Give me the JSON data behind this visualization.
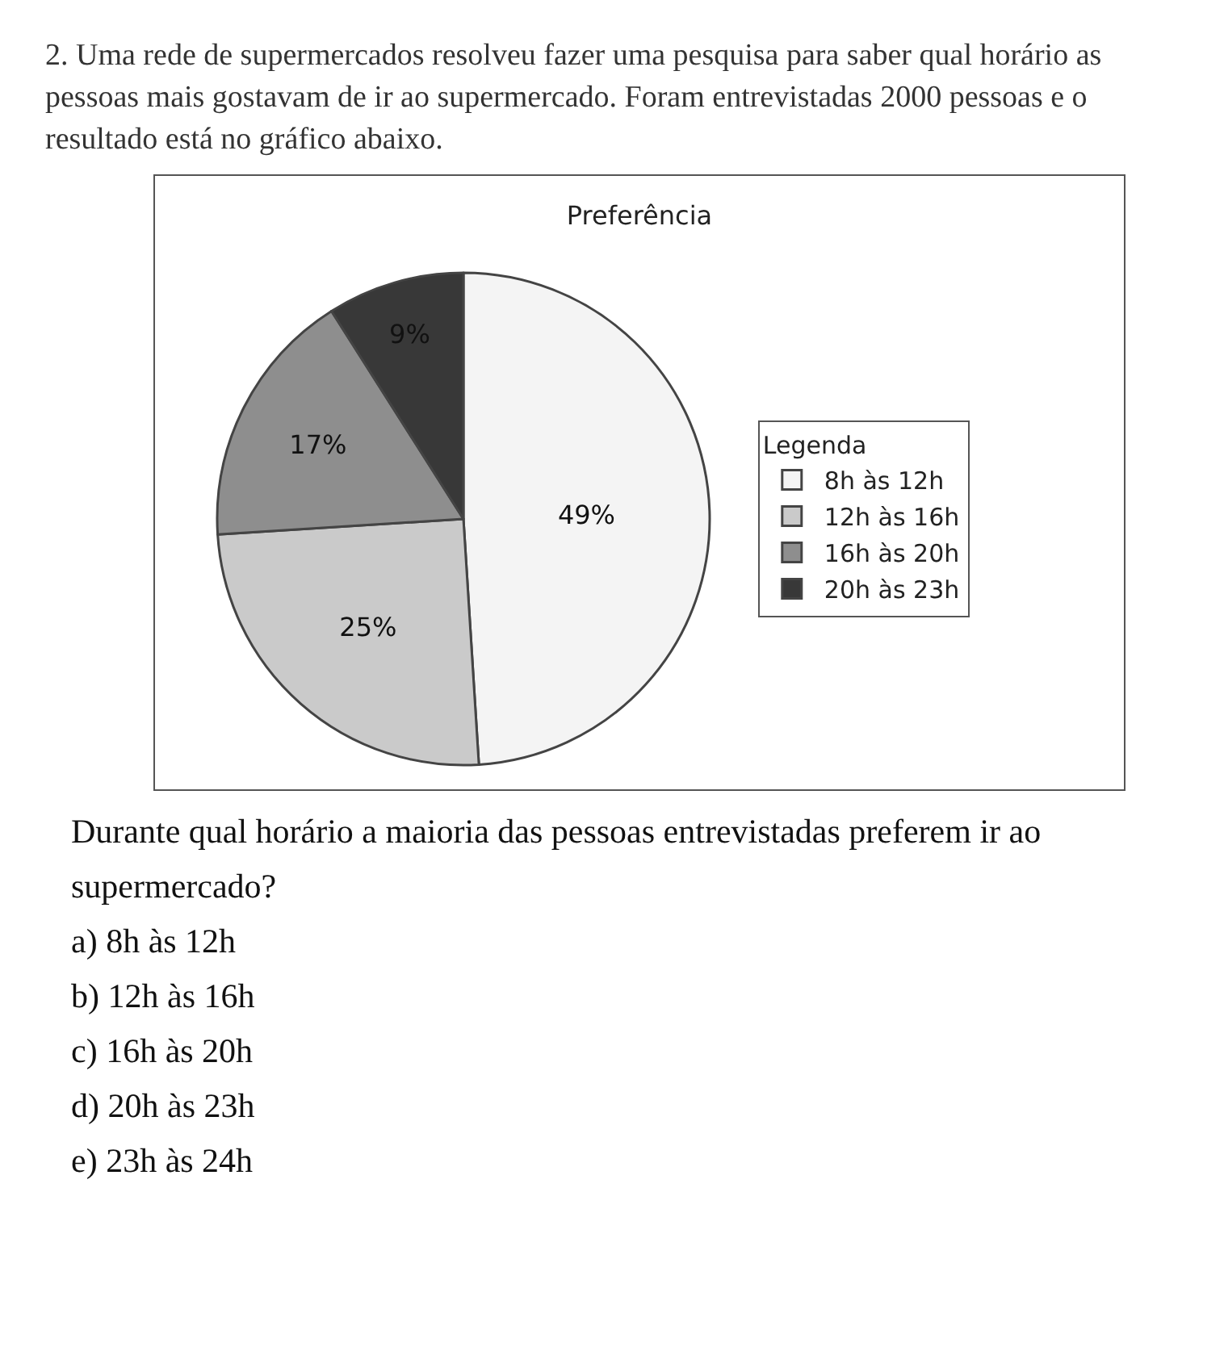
{
  "chart_data": {
    "type": "pie",
    "subtitle": "2. Uma rede de supermercados resolveu fazer uma pesquisa para saber qual horário as pessoas mais gostavam de ir ao supermercado. Foram entrevistadas 2000 pessoas e o resultado está no gráfico abaixo.",
    "title": "Preferência",
    "legend_title": "Legenda",
    "legend": "right",
    "categories": [
      "8h às 12h",
      "12h às 16h",
      "16h às 20h",
      "20h às 23h"
    ],
    "values": [
      49,
      25,
      17,
      9
    ],
    "value_labels": [
      "49%",
      "25%",
      "17%",
      "9%"
    ],
    "colors": [
      "#f4f4f4",
      "#cacaca",
      "#8e8e8e",
      "#383838"
    ],
    "annotations": [
      "Durante qual horário a maioria das pessoas entrevistadas preferem ir ao supermercado?",
      "a) 8h às 12h",
      "b) 12h às 16h",
      "c) 16h às 20h",
      "d) 20h às 23h",
      "e) 23h às 24h"
    ]
  }
}
